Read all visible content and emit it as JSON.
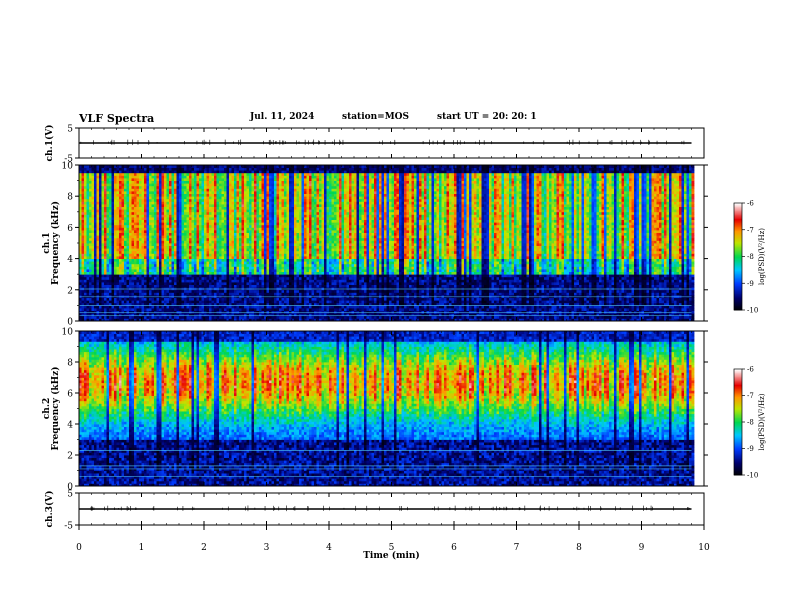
{
  "header": {
    "title": "VLF Spectra",
    "date": "Jul. 11, 2024",
    "station": "station=MOS",
    "start_ut": "start UT =  20: 20: 1"
  },
  "chart_data": [
    {
      "type": "line",
      "panel": "ch1-waveform",
      "ylabel": "ch.1(V)",
      "ylim": [
        -5,
        5
      ],
      "yticks": [
        "5",
        "-5"
      ],
      "x": [
        0,
        9.8
      ],
      "values": [
        0,
        0
      ],
      "xlim": [
        0,
        10
      ]
    },
    {
      "type": "heatmap",
      "panel": "ch1-spectrogram",
      "ylabel": "ch.1\nFrequency (kHz)",
      "ylim": [
        0,
        10
      ],
      "yticks": [
        "0",
        "2",
        "4",
        "6",
        "8",
        "10"
      ],
      "xlim": [
        0,
        10
      ],
      "data_xlim": [
        0,
        9.8
      ],
      "colorbar": {
        "label": "log(PSD)(V²/Hz)",
        "range": [
          -10,
          -6
        ],
        "ticks": [
          "-6",
          "-7",
          "-8",
          "-9",
          "-10"
        ]
      }
    },
    {
      "type": "heatmap",
      "panel": "ch2-spectrogram",
      "ylabel": "ch.2\nFrequency (kHz)",
      "ylim": [
        0,
        10
      ],
      "yticks": [
        "0",
        "2",
        "4",
        "6",
        "8",
        "10"
      ],
      "xlim": [
        0,
        10
      ],
      "data_xlim": [
        0,
        9.8
      ],
      "colorbar": {
        "label": "log(PSD)(V²/Hz)",
        "range": [
          -10,
          -6
        ],
        "ticks": [
          "-6",
          "-7",
          "-8",
          "-9",
          "-10"
        ]
      }
    },
    {
      "type": "line",
      "panel": "ch3-waveform",
      "ylabel": "ch.3(V)",
      "ylim": [
        -5,
        5
      ],
      "yticks": [
        "5",
        "-5"
      ],
      "x": [
        0,
        9.8
      ],
      "values": [
        0,
        0
      ],
      "xlim": [
        0,
        10
      ],
      "xlabel": "Time (min)",
      "xticks": [
        "0",
        "1",
        "2",
        "3",
        "4",
        "5",
        "6",
        "7",
        "8",
        "9",
        "10"
      ]
    }
  ]
}
